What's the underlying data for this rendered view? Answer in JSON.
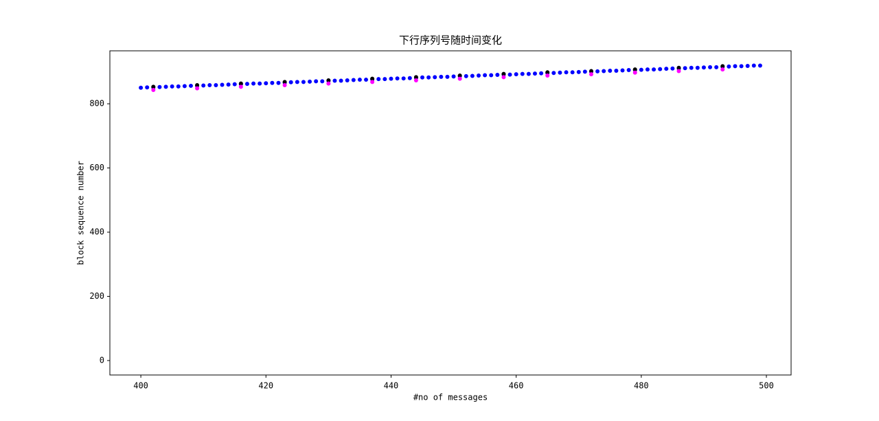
{
  "chart_data": {
    "type": "scatter",
    "title": "下行序列号随时间变化",
    "x_label": "#no of messages",
    "y_label": "block sequence number",
    "xlim": [
      395.05,
      503.95
    ],
    "ylim": [
      -45,
      965
    ],
    "xticks": [
      400,
      420,
      440,
      460,
      480,
      500
    ],
    "yticks": [
      0,
      200,
      400,
      600,
      800
    ],
    "series": [
      {
        "color": "#0000ff",
        "x": [
          400,
          401,
          402,
          403,
          404,
          405,
          406,
          407,
          408,
          409,
          410,
          411,
          412,
          413,
          414,
          415,
          416,
          417,
          418,
          419,
          420,
          421,
          422,
          423,
          424,
          425,
          426,
          427,
          428,
          429,
          430,
          431,
          432,
          433,
          434,
          435,
          436,
          437,
          438,
          439,
          440,
          441,
          442,
          443,
          444,
          445,
          446,
          447,
          448,
          449,
          450,
          451,
          452,
          453,
          454,
          455,
          456,
          457,
          458,
          459,
          460,
          461,
          462,
          463,
          464,
          465,
          466,
          467,
          468,
          469,
          470,
          471,
          472,
          473,
          474,
          475,
          476,
          477,
          478,
          479,
          480,
          481,
          482,
          483,
          484,
          485,
          486,
          487,
          488,
          489,
          490,
          491,
          492,
          493,
          494,
          495,
          496,
          497,
          498,
          499
        ],
        "values": [
          850,
          851,
          851,
          852,
          853,
          854,
          854,
          855,
          856,
          856,
          857,
          858,
          858,
          859,
          860,
          861,
          861,
          862,
          863,
          863,
          864,
          865,
          865,
          866,
          867,
          868,
          868,
          869,
          870,
          870,
          871,
          872,
          872,
          873,
          874,
          875,
          875,
          876,
          877,
          877,
          878,
          879,
          879,
          880,
          881,
          882,
          882,
          883,
          884,
          884,
          885,
          886,
          886,
          887,
          888,
          889,
          889,
          890,
          891,
          891,
          892,
          893,
          893,
          894,
          895,
          896,
          896,
          897,
          898,
          898,
          899,
          900,
          900,
          901,
          902,
          903,
          903,
          904,
          905,
          905,
          906,
          907,
          907,
          908,
          909,
          910,
          910,
          911,
          912,
          912,
          913,
          914,
          914,
          915,
          916,
          917,
          917,
          918,
          919,
          919
        ]
      },
      {
        "color": "#000000",
        "x": [
          402,
          409,
          416,
          423,
          430,
          437,
          444,
          451,
          458,
          465,
          472,
          479,
          486,
          493
        ],
        "values": [
          853,
          858,
          863,
          868,
          873,
          878,
          883,
          888,
          893,
          898,
          902,
          907,
          912,
          917
        ]
      },
      {
        "color": "#ff00ff",
        "x": [
          402,
          409,
          416,
          423,
          430,
          437,
          444,
          451,
          458,
          465,
          472,
          479,
          486,
          493
        ],
        "values": [
          843,
          848,
          853,
          858,
          863,
          868,
          873,
          878,
          883,
          888,
          892,
          897,
          902,
          907
        ]
      }
    ]
  }
}
